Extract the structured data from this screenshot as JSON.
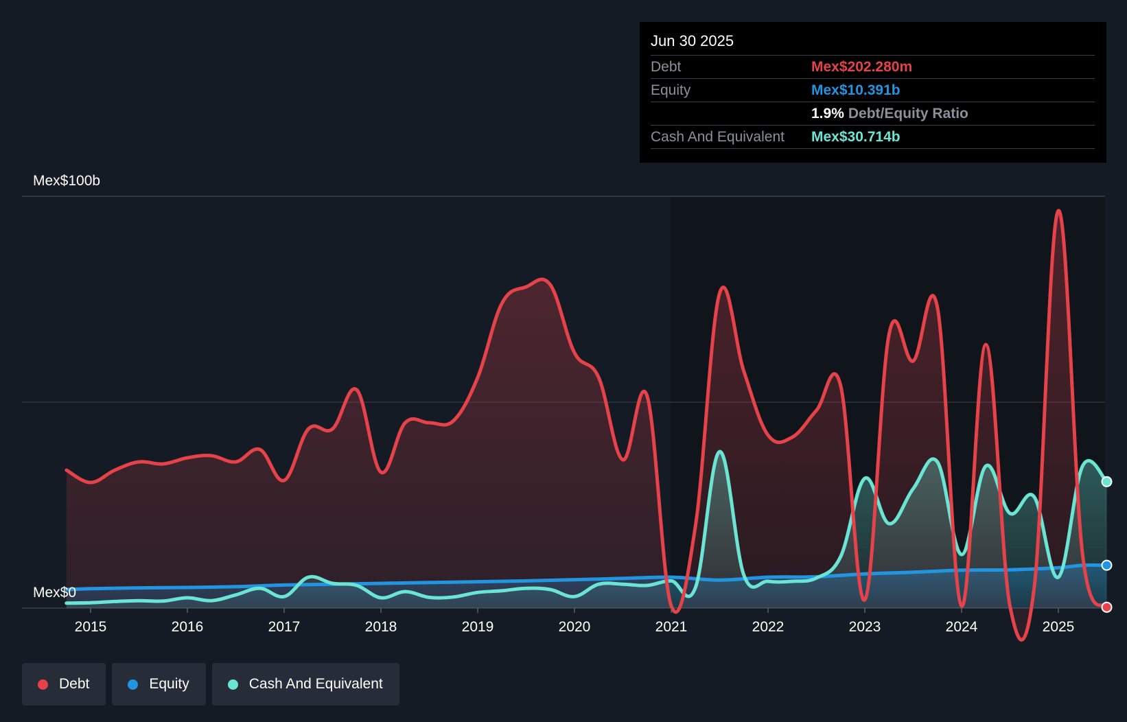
{
  "tooltip": {
    "date": "Jun 30 2025",
    "debt_label": "Debt",
    "debt_value": "Mex$202.280m",
    "equity_label": "Equity",
    "equity_value": "Mex$10.391b",
    "ratio_value": "1.9%",
    "ratio_label": "Debt/Equity Ratio",
    "cash_label": "Cash And Equivalent",
    "cash_value": "Mex$30.714b"
  },
  "legend": [
    {
      "label": "Debt",
      "color": "#e5424a"
    },
    {
      "label": "Equity",
      "color": "#2394df"
    },
    {
      "label": "Cash And Equivalent",
      "color": "#6be4d4"
    }
  ],
  "chart_data": {
    "type": "area",
    "y_top_label": "Mex$100b",
    "y_bottom_label": "Mex$0",
    "ylim": [
      0,
      100
    ],
    "xlim": [
      2014.5,
      2025.5
    ],
    "x_ticks": [
      "2015",
      "2016",
      "2017",
      "2018",
      "2019",
      "2020",
      "2021",
      "2022",
      "2023",
      "2024",
      "2025"
    ],
    "grid": true,
    "colors": {
      "Debt": "#e5424a",
      "Equity": "#2394df",
      "Cash And Equivalent": "#6be4d4"
    },
    "series": [
      {
        "name": "Debt",
        "x": [
          2014.75,
          2015.0,
          2015.25,
          2015.5,
          2015.75,
          2016.0,
          2016.25,
          2016.5,
          2016.75,
          2017.0,
          2017.25,
          2017.5,
          2017.75,
          2018.0,
          2018.25,
          2018.5,
          2018.75,
          2019.0,
          2019.25,
          2019.5,
          2019.75,
          2020.0,
          2020.25,
          2020.5,
          2020.75,
          2021.0,
          2021.25,
          2021.5,
          2021.75,
          2022.0,
          2022.25,
          2022.5,
          2022.75,
          2023.0,
          2023.25,
          2023.5,
          2023.75,
          2024.0,
          2024.25,
          2024.5,
          2024.75,
          2025.0,
          2025.25,
          2025.5
        ],
        "values": [
          33.5,
          30.5,
          33.5,
          35.5,
          35.0,
          36.5,
          37.0,
          35.5,
          38.5,
          31.0,
          43.5,
          43.5,
          53.0,
          33.0,
          45.0,
          45.0,
          45.5,
          56.0,
          74.0,
          78.0,
          78.5,
          62.0,
          56.0,
          36.0,
          51.5,
          0.5,
          20.0,
          76.5,
          57.5,
          42.0,
          41.5,
          48.0,
          54.0,
          2.0,
          66.5,
          60.0,
          73.0,
          0.5,
          64.0,
          0.5,
          5.0,
          96.5,
          13.0,
          0.2
        ]
      },
      {
        "name": "Equity",
        "x": [
          2014.75,
          2015.0,
          2015.5,
          2016.0,
          2016.5,
          2017.0,
          2017.5,
          2018.0,
          2018.5,
          2019.0,
          2019.5,
          2020.0,
          2020.5,
          2021.0,
          2021.5,
          2022.0,
          2022.5,
          2023.0,
          2023.5,
          2024.0,
          2024.5,
          2025.0,
          2025.25,
          2025.5
        ],
        "values": [
          4.5,
          4.7,
          4.9,
          5.0,
          5.2,
          5.6,
          5.8,
          6.0,
          6.2,
          6.4,
          6.6,
          6.9,
          7.2,
          7.5,
          6.8,
          7.5,
          7.6,
          8.3,
          8.7,
          9.2,
          9.3,
          9.8,
          10.4,
          10.4
        ]
      },
      {
        "name": "Cash And Equivalent",
        "x": [
          2014.75,
          2015.0,
          2015.25,
          2015.5,
          2015.75,
          2016.0,
          2016.25,
          2016.5,
          2016.75,
          2017.0,
          2017.25,
          2017.5,
          2017.75,
          2018.0,
          2018.25,
          2018.5,
          2018.75,
          2019.0,
          2019.25,
          2019.5,
          2019.75,
          2020.0,
          2020.25,
          2020.5,
          2020.75,
          2021.0,
          2021.25,
          2021.5,
          2021.75,
          2022.0,
          2022.25,
          2022.5,
          2022.75,
          2023.0,
          2023.25,
          2023.5,
          2023.75,
          2024.0,
          2024.25,
          2024.5,
          2024.75,
          2025.0,
          2025.25,
          2025.5
        ],
        "values": [
          1.2,
          1.3,
          1.6,
          1.8,
          1.7,
          2.5,
          1.8,
          3.2,
          4.8,
          2.8,
          7.5,
          6.0,
          5.5,
          2.5,
          4.0,
          2.6,
          2.7,
          3.8,
          4.2,
          4.8,
          4.5,
          2.8,
          5.8,
          5.8,
          5.5,
          6.6,
          5.0,
          38.0,
          8.0,
          6.5,
          6.5,
          7.3,
          12.5,
          31.5,
          20.5,
          29.0,
          35.5,
          13.0,
          34.5,
          23.0,
          27.0,
          7.5,
          34.5,
          30.7
        ]
      }
    ]
  }
}
